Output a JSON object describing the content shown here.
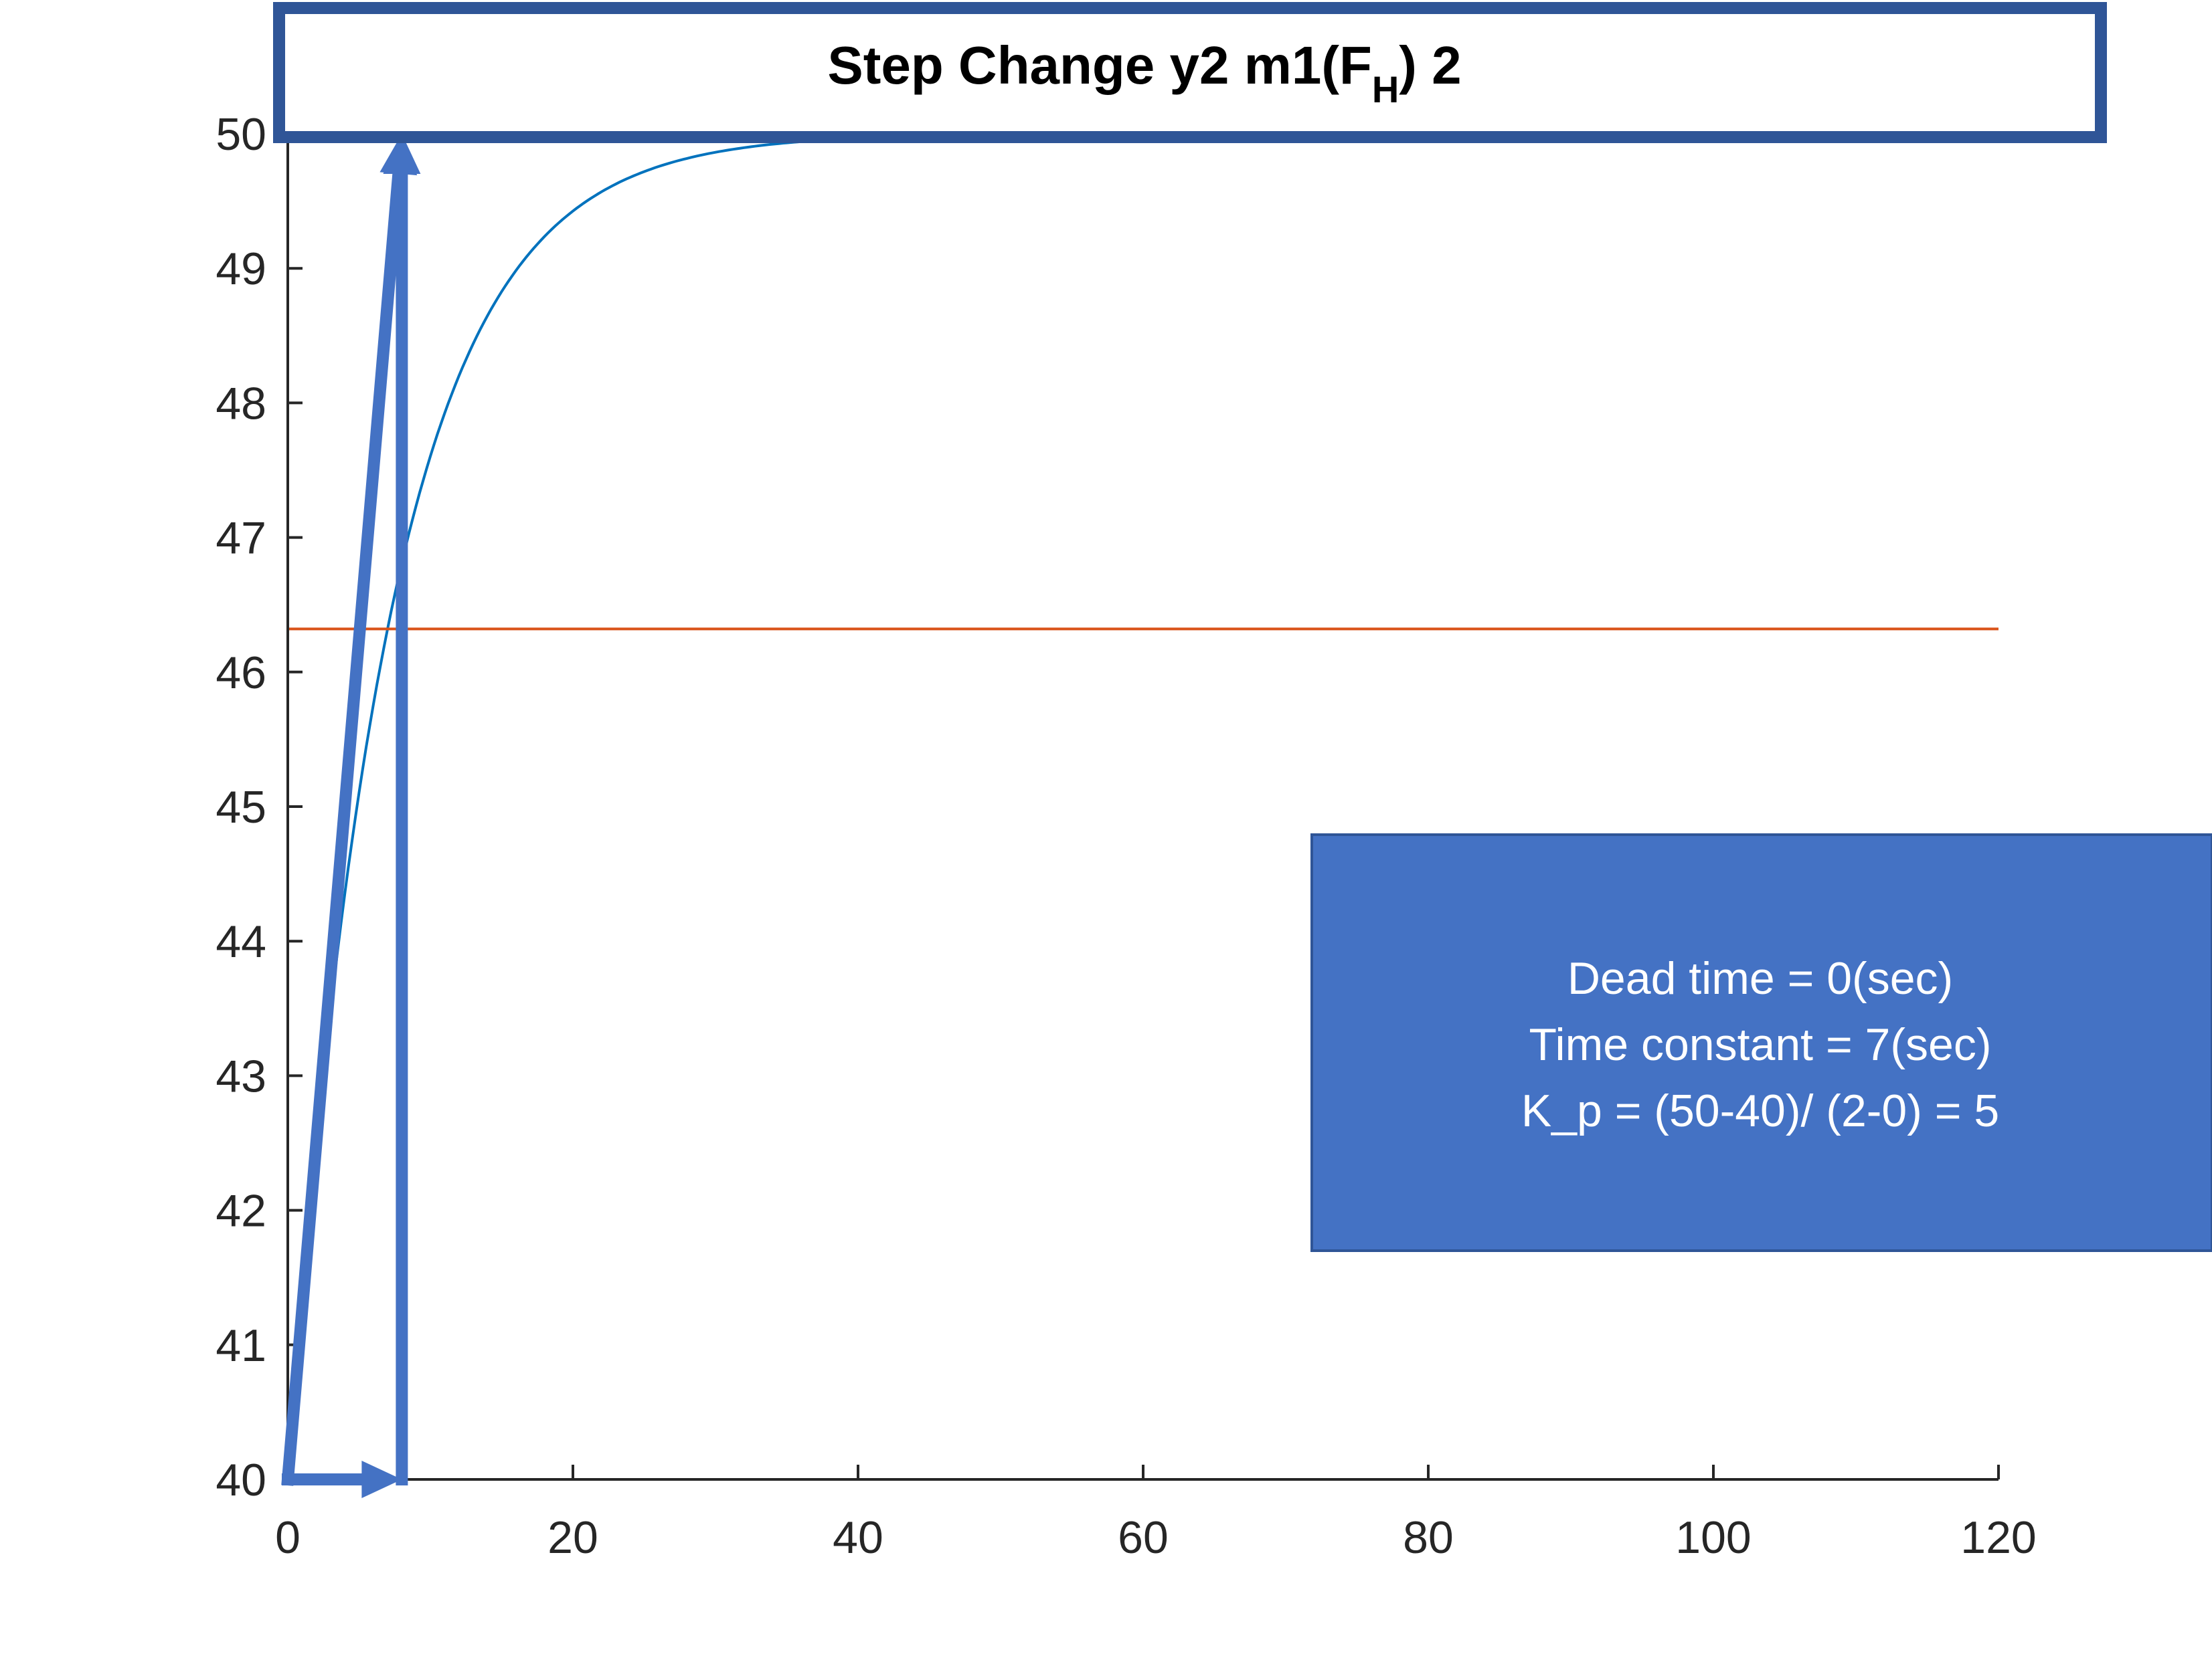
{
  "chart_data": {
    "type": "line",
    "title": {
      "main": "Step Change y2 m1(F",
      "subscript": "H",
      "suffix": ") 2"
    },
    "xlabel": "",
    "ylabel": "",
    "xlim": [
      0,
      120
    ],
    "ylim": [
      40,
      50
    ],
    "xticks": [
      0,
      20,
      40,
      60,
      80,
      100,
      120
    ],
    "yticks": [
      40,
      41,
      42,
      43,
      44,
      45,
      46,
      47,
      48,
      49,
      50
    ],
    "grid": false,
    "series": [
      {
        "kind": "first-order-step-response",
        "color": "#0072BD",
        "start_value": 40,
        "final_value": 50,
        "time_constant": 7,
        "dead_time": 0,
        "x_range": [
          0,
          120
        ]
      },
      {
        "kind": "horizontal-line",
        "color": "#D95319",
        "y": 46.32,
        "x_range": [
          0,
          120
        ]
      }
    ],
    "annotations": {
      "arrow_color": "#4472C4",
      "arrows": [
        {
          "from": [
            0,
            40
          ],
          "to": [
            8,
            40
          ]
        },
        {
          "from": [
            8,
            40
          ],
          "to": [
            8,
            50
          ]
        },
        {
          "from": [
            0,
            40
          ],
          "to": [
            8,
            50
          ]
        }
      ],
      "info_box": {
        "color": "#4472C4",
        "lines": [
          "Dead time = 0(sec)",
          "Time constant = 7(sec)",
          "K_p = (50-40)/ (2-0) = 5"
        ]
      },
      "title_box": {
        "border_color": "#2F5597"
      }
    }
  }
}
